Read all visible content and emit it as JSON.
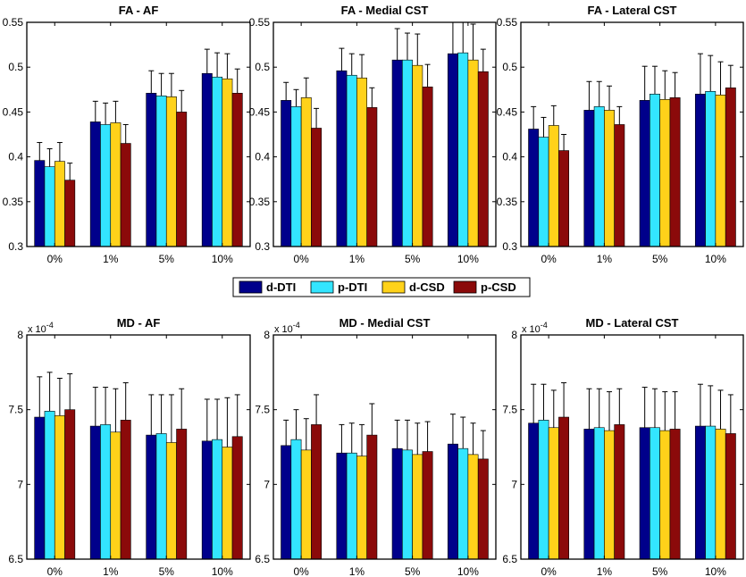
{
  "legend": [
    {
      "name": "d-DTI",
      "color": "#00008B"
    },
    {
      "name": "p-DTI",
      "color": "#33E5FF"
    },
    {
      "name": "d-CSD",
      "color": "#FFD21A"
    },
    {
      "name": "p-CSD",
      "color": "#8B0A0A"
    }
  ],
  "chart_data": [
    {
      "type": "bar",
      "title": "FA - AF",
      "categories": [
        "0%",
        "1%",
        "5%",
        "10%"
      ],
      "ylim": [
        0.3,
        0.55
      ],
      "yticks": [
        "0.3",
        "0.35",
        "0.4",
        "0.45",
        "0.5",
        "0.55"
      ],
      "ytick_values": [
        0.3,
        0.35,
        0.4,
        0.45,
        0.5,
        0.55
      ],
      "exponent": "",
      "series": [
        {
          "name": "d-DTI",
          "values": [
            0.396,
            0.439,
            0.471,
            0.493
          ],
          "errors": [
            0.02,
            0.023,
            0.025,
            0.027
          ]
        },
        {
          "name": "p-DTI",
          "values": [
            0.389,
            0.436,
            0.468,
            0.489
          ],
          "errors": [
            0.02,
            0.024,
            0.025,
            0.027
          ]
        },
        {
          "name": "d-CSD",
          "values": [
            0.395,
            0.438,
            0.467,
            0.487
          ],
          "errors": [
            0.021,
            0.024,
            0.026,
            0.028
          ]
        },
        {
          "name": "p-CSD",
          "values": [
            0.374,
            0.415,
            0.45,
            0.471
          ],
          "errors": [
            0.019,
            0.021,
            0.024,
            0.027
          ]
        }
      ]
    },
    {
      "type": "bar",
      "title": "FA - Medial CST",
      "categories": [
        "0%",
        "1%",
        "5%",
        "10%"
      ],
      "ylim": [
        0.3,
        0.55
      ],
      "yticks": [
        "0.3",
        "0.35",
        "0.4",
        "0.45",
        "0.5",
        "0.55"
      ],
      "ytick_values": [
        0.3,
        0.35,
        0.4,
        0.45,
        0.5,
        0.55
      ],
      "exponent": "",
      "series": [
        {
          "name": "d-DTI",
          "values": [
            0.463,
            0.496,
            0.508,
            0.515
          ],
          "errors": [
            0.02,
            0.025,
            0.035,
            0.04
          ]
        },
        {
          "name": "p-DTI",
          "values": [
            0.456,
            0.491,
            0.508,
            0.516
          ],
          "errors": [
            0.019,
            0.024,
            0.03,
            0.04
          ]
        },
        {
          "name": "d-CSD",
          "values": [
            0.466,
            0.488,
            0.502,
            0.508
          ],
          "errors": [
            0.022,
            0.026,
            0.035,
            0.04
          ]
        },
        {
          "name": "p-CSD",
          "values": [
            0.432,
            0.455,
            0.478,
            0.495
          ],
          "errors": [
            0.022,
            0.022,
            0.025,
            0.025
          ]
        }
      ]
    },
    {
      "type": "bar",
      "title": "FA - Lateral CST",
      "categories": [
        "0%",
        "1%",
        "5%",
        "10%"
      ],
      "ylim": [
        0.3,
        0.55
      ],
      "yticks": [
        "0.3",
        "0.35",
        "0.4",
        "0.45",
        "0.5",
        "0.55"
      ],
      "ytick_values": [
        0.3,
        0.35,
        0.4,
        0.45,
        0.5,
        0.55
      ],
      "exponent": "",
      "series": [
        {
          "name": "d-DTI",
          "values": [
            0.431,
            0.452,
            0.463,
            0.47
          ],
          "errors": [
            0.025,
            0.032,
            0.038,
            0.045
          ]
        },
        {
          "name": "p-DTI",
          "values": [
            0.422,
            0.456,
            0.47,
            0.473
          ],
          "errors": [
            0.022,
            0.028,
            0.031,
            0.04
          ]
        },
        {
          "name": "d-CSD",
          "values": [
            0.435,
            0.452,
            0.464,
            0.469
          ],
          "errors": [
            0.022,
            0.027,
            0.032,
            0.037
          ]
        },
        {
          "name": "p-CSD",
          "values": [
            0.407,
            0.436,
            0.466,
            0.477
          ],
          "errors": [
            0.018,
            0.02,
            0.028,
            0.025
          ]
        }
      ]
    },
    {
      "type": "bar",
      "title": "MD - AF",
      "categories": [
        "0%",
        "1%",
        "5%",
        "10%"
      ],
      "ylim": [
        6.5,
        8
      ],
      "yticks": [
        "6.5",
        "7",
        "7.5",
        "8"
      ],
      "ytick_values": [
        6.5,
        7,
        7.5,
        8
      ],
      "exponent": "x 10",
      "exponent_power": "-4",
      "series": [
        {
          "name": "d-DTI",
          "values": [
            7.45,
            7.39,
            7.33,
            7.29
          ],
          "errors": [
            0.27,
            0.26,
            0.27,
            0.28
          ]
        },
        {
          "name": "p-DTI",
          "values": [
            7.49,
            7.4,
            7.34,
            7.3
          ],
          "errors": [
            0.26,
            0.25,
            0.26,
            0.27
          ]
        },
        {
          "name": "d-CSD",
          "values": [
            7.46,
            7.35,
            7.28,
            7.25
          ],
          "errors": [
            0.25,
            0.29,
            0.32,
            0.33
          ]
        },
        {
          "name": "p-CSD",
          "values": [
            7.5,
            7.43,
            7.37,
            7.32
          ],
          "errors": [
            0.24,
            0.25,
            0.27,
            0.28
          ]
        }
      ]
    },
    {
      "type": "bar",
      "title": "MD - Medial CST",
      "categories": [
        "0%",
        "1%",
        "5%",
        "10%"
      ],
      "ylim": [
        6.5,
        8
      ],
      "yticks": [
        "6.5",
        "7",
        "7.5",
        "8"
      ],
      "ytick_values": [
        6.5,
        7,
        7.5,
        8
      ],
      "exponent": "x 10",
      "exponent_power": "-4",
      "series": [
        {
          "name": "d-DTI",
          "values": [
            7.26,
            7.21,
            7.24,
            7.27
          ],
          "errors": [
            0.17,
            0.19,
            0.19,
            0.2
          ]
        },
        {
          "name": "p-DTI",
          "values": [
            7.3,
            7.21,
            7.23,
            7.24
          ],
          "errors": [
            0.2,
            0.2,
            0.2,
            0.21
          ]
        },
        {
          "name": "d-CSD",
          "values": [
            7.23,
            7.19,
            7.2,
            7.2
          ],
          "errors": [
            0.21,
            0.21,
            0.21,
            0.21
          ]
        },
        {
          "name": "p-CSD",
          "values": [
            7.4,
            7.33,
            7.22,
            7.17
          ],
          "errors": [
            0.2,
            0.21,
            0.2,
            0.19
          ]
        }
      ]
    },
    {
      "type": "bar",
      "title": "MD - Lateral CST",
      "categories": [
        "0%",
        "1%",
        "5%",
        "10%"
      ],
      "ylim": [
        6.5,
        8
      ],
      "yticks": [
        "6.5",
        "7",
        "7.5",
        "8"
      ],
      "ytick_values": [
        6.5,
        7,
        7.5,
        8
      ],
      "exponent": "x 10",
      "exponent_power": "-4",
      "series": [
        {
          "name": "d-DTI",
          "values": [
            7.41,
            7.37,
            7.38,
            7.39
          ],
          "errors": [
            0.26,
            0.27,
            0.27,
            0.28
          ]
        },
        {
          "name": "p-DTI",
          "values": [
            7.43,
            7.38,
            7.38,
            7.39
          ],
          "errors": [
            0.24,
            0.26,
            0.26,
            0.27
          ]
        },
        {
          "name": "d-CSD",
          "values": [
            7.38,
            7.36,
            7.36,
            7.37
          ],
          "errors": [
            0.25,
            0.26,
            0.26,
            0.26
          ]
        },
        {
          "name": "p-CSD",
          "values": [
            7.45,
            7.4,
            7.37,
            7.34
          ],
          "errors": [
            0.23,
            0.24,
            0.25,
            0.26
          ]
        }
      ]
    }
  ]
}
